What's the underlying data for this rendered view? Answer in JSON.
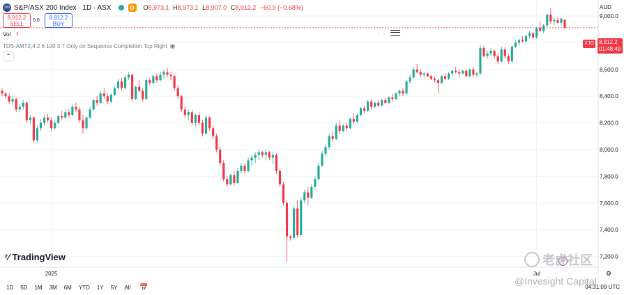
{
  "header": {
    "badge": "200",
    "title": "S&P/ASX 200 Index · 1D · ASX",
    "d_badge": "D",
    "ohlc": [
      {
        "k": "O",
        "v": "8,973.1"
      },
      {
        "k": "H",
        "v": "8,973.1"
      },
      {
        "k": "L",
        "v": "8,907.0"
      },
      {
        "k": "C",
        "v": "8,912.2"
      },
      {
        "k": "",
        "v": "−60.9 (−0.68%)"
      }
    ]
  },
  "trade": {
    "sell_price": "8,912.2",
    "sell_label": "SELL",
    "spread": "0.0",
    "buy_price": "8,912.2",
    "buy_label": "BUY"
  },
  "indicators": {
    "vol_label": "Vol",
    "tds_label": "TDS-AMT2,4 2 6 100 3 7 Only on Sequence Completion Top Right"
  },
  "currency": "AUD",
  "last_price": {
    "symbol": "XJO",
    "value": "8,912.2",
    "countdown": "01:48:49"
  },
  "colors": {
    "up": "#22ab94",
    "down": "#f23645",
    "grid": "#f0f3fa",
    "axis_text": "#131722",
    "price_line": "#f23645"
  },
  "logo": "TradingView",
  "toolbar": {
    "ranges": [
      "1D",
      "5D",
      "1M",
      "3M",
      "6M",
      "YTD",
      "1Y",
      "5Y",
      "All"
    ],
    "clock": "04:31:09 UTC"
  },
  "watermark": {
    "cn": "老虎社区",
    "en": "@Invesight Capital"
  },
  "chart_data": {
    "type": "candlestick",
    "title": "S&P/ASX 200 Index · 1D · ASX",
    "ylim": [
      7120,
      9120
    ],
    "y_ticks": [
      7200,
      7400,
      7600,
      7800,
      8000,
      8200,
      8400,
      8600,
      8800,
      9000
    ],
    "y_tick_labels": [
      "7,200.0",
      "7,400.0",
      "7,600.0",
      "7,800.0",
      "8,000.0",
      "8,200.0",
      "8,400.0",
      "8,600.0",
      "8,800.0",
      "9,000.0"
    ],
    "x_labels": [
      {
        "label": "2025",
        "index": 14
      },
      {
        "label": "Jul",
        "index": 152
      }
    ],
    "last_value": 8912.2,
    "candles": [
      [
        8440,
        8460,
        8400,
        8420
      ],
      [
        8420,
        8430,
        8380,
        8400
      ],
      [
        8400,
        8420,
        8340,
        8360
      ],
      [
        8360,
        8400,
        8330,
        8380
      ],
      [
        8380,
        8390,
        8280,
        8300
      ],
      [
        8300,
        8340,
        8280,
        8320
      ],
      [
        8320,
        8370,
        8300,
        8350
      ],
      [
        8350,
        8360,
        8200,
        8220
      ],
      [
        8220,
        8260,
        8190,
        8240
      ],
      [
        8240,
        8250,
        8050,
        8070
      ],
      [
        8070,
        8180,
        8050,
        8160
      ],
      [
        8160,
        8230,
        8140,
        8200
      ],
      [
        8200,
        8260,
        8180,
        8240
      ],
      [
        8240,
        8270,
        8200,
        8220
      ],
      [
        8220,
        8240,
        8140,
        8160
      ],
      [
        8160,
        8220,
        8150,
        8200
      ],
      [
        8200,
        8260,
        8190,
        8250
      ],
      [
        8250,
        8290,
        8220,
        8240
      ],
      [
        8240,
        8300,
        8230,
        8280
      ],
      [
        8280,
        8300,
        8240,
        8260
      ],
      [
        8260,
        8340,
        8250,
        8320
      ],
      [
        8320,
        8350,
        8280,
        8300
      ],
      [
        8300,
        8320,
        8200,
        8220
      ],
      [
        8220,
        8260,
        8120,
        8160
      ],
      [
        8160,
        8250,
        8150,
        8240
      ],
      [
        8240,
        8320,
        8230,
        8300
      ],
      [
        8300,
        8380,
        8290,
        8370
      ],
      [
        8370,
        8400,
        8330,
        8350
      ],
      [
        8350,
        8440,
        8340,
        8420
      ],
      [
        8420,
        8460,
        8380,
        8400
      ],
      [
        8400,
        8420,
        8340,
        8360
      ],
      [
        8360,
        8420,
        8350,
        8410
      ],
      [
        8410,
        8480,
        8400,
        8460
      ],
      [
        8460,
        8530,
        8440,
        8510
      ],
      [
        8510,
        8540,
        8440,
        8460
      ],
      [
        8460,
        8560,
        8450,
        8540
      ],
      [
        8540,
        8580,
        8520,
        8560
      ],
      [
        8560,
        8570,
        8360,
        8380
      ],
      [
        8380,
        8480,
        8370,
        8470
      ],
      [
        8470,
        8520,
        8430,
        8440
      ],
      [
        8440,
        8460,
        8360,
        8380
      ],
      [
        8380,
        8530,
        8370,
        8520
      ],
      [
        8520,
        8540,
        8480,
        8500
      ],
      [
        8500,
        8560,
        8490,
        8550
      ],
      [
        8550,
        8570,
        8500,
        8520
      ],
      [
        8520,
        8580,
        8510,
        8560
      ],
      [
        8560,
        8600,
        8530,
        8580
      ],
      [
        8580,
        8610,
        8540,
        8560
      ],
      [
        8560,
        8580,
        8520,
        8550
      ],
      [
        8550,
        8560,
        8440,
        8460
      ],
      [
        8460,
        8480,
        8380,
        8400
      ],
      [
        8400,
        8410,
        8280,
        8300
      ],
      [
        8300,
        8320,
        8240,
        8260
      ],
      [
        8260,
        8300,
        8220,
        8280
      ],
      [
        8280,
        8300,
        8180,
        8200
      ],
      [
        8200,
        8270,
        8170,
        8260
      ],
      [
        8260,
        8280,
        8180,
        8200
      ],
      [
        8200,
        8220,
        8100,
        8120
      ],
      [
        8120,
        8260,
        8110,
        8240
      ],
      [
        8240,
        8250,
        8140,
        8160
      ],
      [
        8160,
        8180,
        8080,
        8100
      ],
      [
        8100,
        8120,
        7980,
        8000
      ],
      [
        8000,
        8020,
        7880,
        7900
      ],
      [
        7900,
        7920,
        7760,
        7780
      ],
      [
        7780,
        7800,
        7720,
        7740
      ],
      [
        7740,
        7820,
        7730,
        7810
      ],
      [
        7810,
        7840,
        7730,
        7750
      ],
      [
        7750,
        7860,
        7740,
        7840
      ],
      [
        7840,
        7900,
        7820,
        7880
      ],
      [
        7880,
        7900,
        7820,
        7840
      ],
      [
        7840,
        7940,
        7830,
        7920
      ],
      [
        7920,
        7960,
        7880,
        7940
      ],
      [
        7940,
        7980,
        7900,
        7960
      ],
      [
        7960,
        8000,
        7920,
        7980
      ],
      [
        7980,
        7990,
        7940,
        7960
      ],
      [
        7960,
        8000,
        7920,
        7980
      ],
      [
        7980,
        7990,
        7920,
        7940
      ],
      [
        7940,
        7980,
        7890,
        7960
      ],
      [
        7960,
        7970,
        7820,
        7840
      ],
      [
        7840,
        7860,
        7720,
        7740
      ],
      [
        7740,
        7760,
        7580,
        7600
      ],
      [
        7600,
        7620,
        7160,
        7350
      ],
      [
        7350,
        7360,
        7320,
        7340
      ],
      [
        7340,
        7580,
        7330,
        7560
      ],
      [
        7560,
        7620,
        7340,
        7360
      ],
      [
        7360,
        7640,
        7350,
        7620
      ],
      [
        7620,
        7700,
        7600,
        7680
      ],
      [
        7680,
        7720,
        7580,
        7640
      ],
      [
        7640,
        7740,
        7630,
        7720
      ],
      [
        7720,
        7800,
        7700,
        7780
      ],
      [
        7780,
        7900,
        7770,
        7880
      ],
      [
        7880,
        7990,
        7870,
        7970
      ],
      [
        7970,
        8040,
        7950,
        8020
      ],
      [
        8020,
        8120,
        8000,
        8100
      ],
      [
        8100,
        8140,
        8060,
        8080
      ],
      [
        8080,
        8200,
        8070,
        8180
      ],
      [
        8180,
        8220,
        8120,
        8140
      ],
      [
        8140,
        8190,
        8130,
        8180
      ],
      [
        8180,
        8200,
        8140,
        8160
      ],
      [
        8160,
        8240,
        8150,
        8230
      ],
      [
        8230,
        8270,
        8190,
        8210
      ],
      [
        8210,
        8270,
        8200,
        8260
      ],
      [
        8260,
        8320,
        8250,
        8310
      ],
      [
        8310,
        8330,
        8270,
        8290
      ],
      [
        8290,
        8370,
        8280,
        8360
      ],
      [
        8360,
        8380,
        8300,
        8320
      ],
      [
        8320,
        8360,
        8310,
        8350
      ],
      [
        8350,
        8370,
        8320,
        8330
      ],
      [
        8330,
        8380,
        8320,
        8370
      ],
      [
        8370,
        8390,
        8340,
        8350
      ],
      [
        8350,
        8400,
        8340,
        8390
      ],
      [
        8390,
        8420,
        8360,
        8380
      ],
      [
        8380,
        8430,
        8370,
        8420
      ],
      [
        8420,
        8450,
        8400,
        8440
      ],
      [
        8440,
        8460,
        8400,
        8420
      ],
      [
        8420,
        8520,
        8410,
        8510
      ],
      [
        8510,
        8560,
        8490,
        8540
      ],
      [
        8540,
        8620,
        8530,
        8600
      ],
      [
        8600,
        8640,
        8570,
        8580
      ],
      [
        8580,
        8600,
        8540,
        8560
      ],
      [
        8560,
        8580,
        8540,
        8570
      ],
      [
        8570,
        8580,
        8540,
        8550
      ],
      [
        8550,
        8560,
        8520,
        8530
      ],
      [
        8530,
        8550,
        8500,
        8520
      ],
      [
        8520,
        8530,
        8420,
        8500
      ],
      [
        8500,
        8560,
        8490,
        8550
      ],
      [
        8550,
        8570,
        8520,
        8530
      ],
      [
        8530,
        8580,
        8520,
        8570
      ],
      [
        8570,
        8600,
        8550,
        8590
      ],
      [
        8590,
        8620,
        8570,
        8580
      ],
      [
        8580,
        8600,
        8540,
        8570
      ],
      [
        8570,
        8600,
        8560,
        8590
      ],
      [
        8590,
        8600,
        8540,
        8550
      ],
      [
        8550,
        8610,
        8540,
        8600
      ],
      [
        8600,
        8620,
        8540,
        8560
      ],
      [
        8560,
        8580,
        8540,
        8570
      ],
      [
        8570,
        8780,
        8560,
        8760
      ],
      [
        8760,
        8780,
        8690,
        8700
      ],
      [
        8700,
        8740,
        8680,
        8720
      ],
      [
        8720,
        8760,
        8700,
        8740
      ],
      [
        8740,
        8750,
        8680,
        8700
      ],
      [
        8700,
        8720,
        8640,
        8660
      ],
      [
        8660,
        8770,
        8650,
        8750
      ],
      [
        8750,
        8770,
        8680,
        8700
      ],
      [
        8700,
        8720,
        8640,
        8660
      ],
      [
        8660,
        8780,
        8650,
        8770
      ],
      [
        8770,
        8820,
        8760,
        8800
      ],
      [
        8800,
        8830,
        8780,
        8820
      ],
      [
        8820,
        8850,
        8800,
        8810
      ],
      [
        8810,
        8860,
        8800,
        8850
      ],
      [
        8850,
        8890,
        8830,
        8870
      ],
      [
        8870,
        8880,
        8830,
        8840
      ],
      [
        8840,
        8920,
        8830,
        8910
      ],
      [
        8910,
        8960,
        8880,
        8890
      ],
      [
        8890,
        8940,
        8870,
        8930
      ],
      [
        8930,
        9020,
        8920,
        9010
      ],
      [
        9010,
        9060,
        8940,
        8960
      ],
      [
        8960,
        8990,
        8930,
        8970
      ],
      [
        8970,
        8990,
        8940,
        8950
      ],
      [
        8950,
        8990,
        8930,
        8980
      ],
      [
        8973.1,
        8973.1,
        8907.0,
        8912.2
      ]
    ]
  }
}
